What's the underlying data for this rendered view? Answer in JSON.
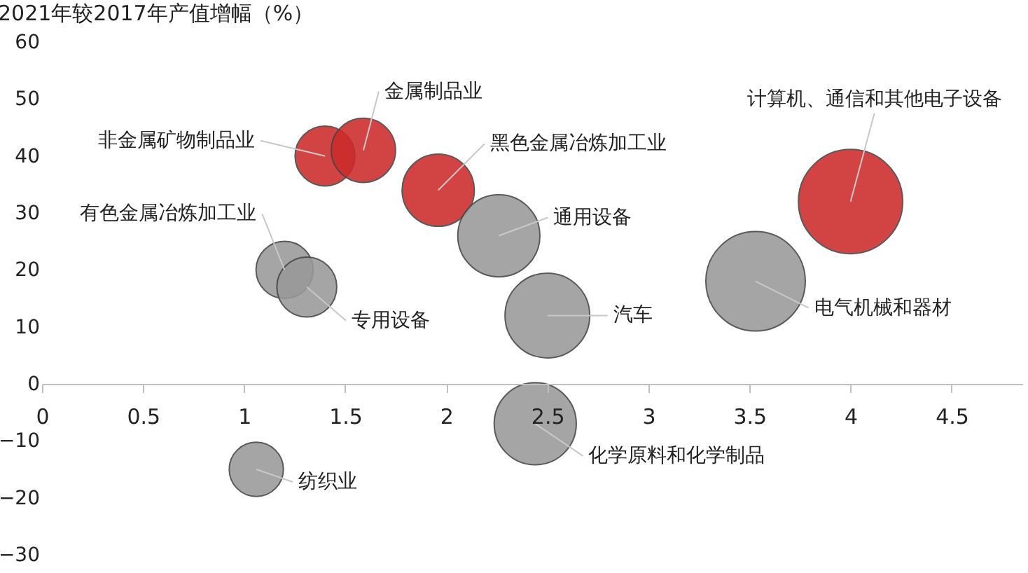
{
  "chart_data": {
    "type": "bubble",
    "ylabel": "2021年较2017年产值增幅（%）",
    "xlim": [
      0,
      4.85
    ],
    "xticks": [
      0,
      0.5,
      1,
      1.5,
      2,
      2.5,
      3,
      3.5,
      4,
      4.5
    ],
    "ylim": [
      -30,
      60
    ],
    "yticks": [
      -30,
      -20,
      -10,
      0,
      10,
      20,
      30,
      40,
      50,
      60
    ],
    "grid": false,
    "legend": false,
    "series": [
      {
        "name": "非金属矿物制品业",
        "color": "#cc2a2a",
        "x": [
          1.4
        ],
        "values": [
          40
        ],
        "sizes": [
          0.33
        ]
      },
      {
        "name": "金属制品业",
        "color": "#cc2a2a",
        "x": [
          1.59
        ],
        "values": [
          41
        ],
        "sizes": [
          0.38
        ]
      },
      {
        "name": "黑色金属冶炼加工业",
        "color": "#cc2a2a",
        "x": [
          1.96
        ],
        "values": [
          34
        ],
        "sizes": [
          0.48
        ]
      },
      {
        "name": "通用设备",
        "color": "#999999",
        "x": [
          2.26
        ],
        "values": [
          26
        ],
        "sizes": [
          0.62
        ]
      },
      {
        "name": "有色金属冶炼加工业",
        "color": "#999999",
        "x": [
          1.2
        ],
        "values": [
          20
        ],
        "sizes": [
          0.3
        ]
      },
      {
        "name": "专用设备",
        "color": "#999999",
        "x": [
          1.31
        ],
        "values": [
          17
        ],
        "sizes": [
          0.33
        ]
      },
      {
        "name": "汽车",
        "color": "#999999",
        "x": [
          2.5
        ],
        "values": [
          12
        ],
        "sizes": [
          0.66
        ]
      },
      {
        "name": "化学原料和化学制品",
        "color": "#999999",
        "x": [
          2.44
        ],
        "values": [
          -7
        ],
        "sizes": [
          0.62
        ]
      },
      {
        "name": "纺织业",
        "color": "#999999",
        "x": [
          1.06
        ],
        "values": [
          -15
        ],
        "sizes": [
          0.27
        ]
      },
      {
        "name": "电气机械和器材",
        "color": "#999999",
        "x": [
          3.53
        ],
        "values": [
          18
        ],
        "sizes": [
          0.91
        ]
      },
      {
        "name": "计算机、通信和其他电子设备",
        "color": "#cc2a2a",
        "x": [
          4.0
        ],
        "values": [
          32
        ],
        "sizes": [
          1.0
        ]
      }
    ]
  }
}
